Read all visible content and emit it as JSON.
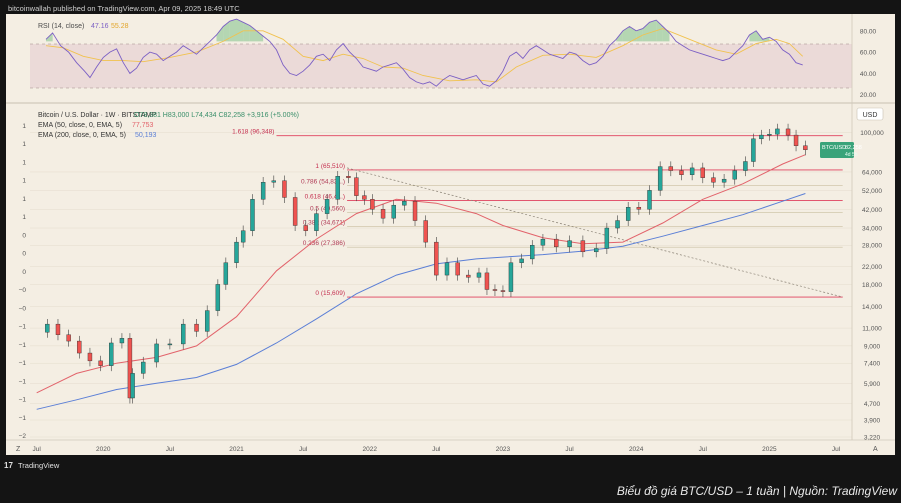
{
  "header": {
    "published_by": "bitcoinwallah published on TradingView.com, Apr 09, 2025 18:49 UTC"
  },
  "rsi": {
    "label": "RSI (14, close)",
    "value1": "47.16",
    "value2": "55.28",
    "ticks": [
      "80.00",
      "60.00",
      "40.00",
      "20.00"
    ],
    "overbought": 70,
    "oversold": 30,
    "range": [
      15,
      92
    ],
    "values": [
      [
        2019.57,
        72
      ],
      [
        2019.62,
        78
      ],
      [
        2019.68,
        66
      ],
      [
        2019.74,
        60
      ],
      [
        2019.8,
        50
      ],
      [
        2019.86,
        42
      ],
      [
        2019.9,
        36
      ],
      [
        2019.95,
        46
      ],
      [
        2020.0,
        55
      ],
      [
        2020.05,
        60
      ],
      [
        2020.1,
        63
      ],
      [
        2020.15,
        50
      ],
      [
        2020.2,
        40
      ],
      [
        2020.25,
        45
      ],
      [
        2020.3,
        55
      ],
      [
        2020.35,
        60
      ],
      [
        2020.4,
        58
      ],
      [
        2020.45,
        52
      ],
      [
        2020.5,
        56
      ],
      [
        2020.55,
        60
      ],
      [
        2020.6,
        66
      ],
      [
        2020.65,
        62
      ],
      [
        2020.7,
        58
      ],
      [
        2020.75,
        64
      ],
      [
        2020.8,
        70
      ],
      [
        2020.85,
        76
      ],
      [
        2020.9,
        84
      ],
      [
        2020.95,
        89
      ],
      [
        2021.0,
        91
      ],
      [
        2021.05,
        88
      ],
      [
        2021.1,
        85
      ],
      [
        2021.15,
        80
      ],
      [
        2021.2,
        75
      ],
      [
        2021.25,
        70
      ],
      [
        2021.3,
        62
      ],
      [
        2021.35,
        48
      ],
      [
        2021.4,
        40
      ],
      [
        2021.45,
        38
      ],
      [
        2021.5,
        42
      ],
      [
        2021.55,
        48
      ],
      [
        2021.6,
        56
      ],
      [
        2021.65,
        58
      ],
      [
        2021.7,
        52
      ],
      [
        2021.75,
        62
      ],
      [
        2021.8,
        68
      ],
      [
        2021.85,
        60
      ],
      [
        2021.9,
        54
      ],
      [
        2021.95,
        46
      ],
      [
        2022.0,
        44
      ],
      [
        2022.05,
        42
      ],
      [
        2022.1,
        46
      ],
      [
        2022.15,
        48
      ],
      [
        2022.2,
        50
      ],
      [
        2022.25,
        44
      ],
      [
        2022.3,
        36
      ],
      [
        2022.35,
        32
      ],
      [
        2022.4,
        30
      ],
      [
        2022.45,
        32
      ],
      [
        2022.5,
        28
      ],
      [
        2022.55,
        34
      ],
      [
        2022.6,
        38
      ],
      [
        2022.65,
        36
      ],
      [
        2022.7,
        34
      ],
      [
        2022.75,
        36
      ],
      [
        2022.8,
        38
      ],
      [
        2022.85,
        30
      ],
      [
        2022.9,
        28
      ],
      [
        2022.95,
        33
      ],
      [
        2023.0,
        42
      ],
      [
        2023.05,
        56
      ],
      [
        2023.1,
        60
      ],
      [
        2023.15,
        54
      ],
      [
        2023.2,
        62
      ],
      [
        2023.25,
        66
      ],
      [
        2023.3,
        62
      ],
      [
        2023.35,
        58
      ],
      [
        2023.4,
        56
      ],
      [
        2023.45,
        54
      ],
      [
        2023.5,
        60
      ],
      [
        2023.55,
        58
      ],
      [
        2023.6,
        52
      ],
      [
        2023.65,
        48
      ],
      [
        2023.7,
        50
      ],
      [
        2023.75,
        56
      ],
      [
        2023.8,
        66
      ],
      [
        2023.85,
        72
      ],
      [
        2023.9,
        80
      ],
      [
        2023.95,
        84
      ],
      [
        2024.0,
        80
      ],
      [
        2024.05,
        82
      ],
      [
        2024.1,
        88
      ],
      [
        2024.15,
        90
      ],
      [
        2024.2,
        84
      ],
      [
        2024.25,
        78
      ],
      [
        2024.3,
        70
      ],
      [
        2024.35,
        66
      ],
      [
        2024.4,
        62
      ],
      [
        2024.45,
        60
      ],
      [
        2024.5,
        58
      ],
      [
        2024.55,
        56
      ],
      [
        2024.6,
        54
      ],
      [
        2024.65,
        52
      ],
      [
        2024.7,
        54
      ],
      [
        2024.75,
        60
      ],
      [
        2024.8,
        66
      ],
      [
        2024.85,
        76
      ],
      [
        2024.9,
        80
      ],
      [
        2024.95,
        72
      ],
      [
        2025.0,
        74
      ],
      [
        2025.05,
        70
      ],
      [
        2025.1,
        62
      ],
      [
        2025.15,
        58
      ],
      [
        2025.2,
        50
      ],
      [
        2025.25,
        48
      ]
    ],
    "ema": [
      [
        2019.57,
        66
      ],
      [
        2019.7,
        64
      ],
      [
        2019.85,
        56
      ],
      [
        2020.0,
        52
      ],
      [
        2020.15,
        52
      ],
      [
        2020.3,
        51
      ],
      [
        2020.5,
        55
      ],
      [
        2020.7,
        60
      ],
      [
        2020.9,
        70
      ],
      [
        2021.05,
        80
      ],
      [
        2021.2,
        80
      ],
      [
        2021.35,
        72
      ],
      [
        2021.5,
        56
      ],
      [
        2021.65,
        52
      ],
      [
        2021.8,
        58
      ],
      [
        2021.95,
        54
      ],
      [
        2022.1,
        46
      ],
      [
        2022.25,
        45
      ],
      [
        2022.4,
        38
      ],
      [
        2022.6,
        33
      ],
      [
        2022.8,
        34
      ],
      [
        2022.95,
        32
      ],
      [
        2023.1,
        46
      ],
      [
        2023.3,
        57
      ],
      [
        2023.5,
        58
      ],
      [
        2023.7,
        55
      ],
      [
        2023.9,
        66
      ],
      [
        2024.05,
        76
      ],
      [
        2024.2,
        82
      ],
      [
        2024.4,
        72
      ],
      [
        2024.6,
        62
      ],
      [
        2024.75,
        58
      ],
      [
        2024.9,
        68
      ],
      [
        2025.05,
        72
      ],
      [
        2025.15,
        68
      ],
      [
        2025.25,
        56
      ]
    ]
  },
  "main": {
    "title": "Bitcoin / U.S. Dollar · 1W · BITSTAMP",
    "ohlc": "O78,381  H83,000  L74,434  C82,258  +3,916 (+5.00%)",
    "ema50_label": "EMA (50, close, 0, EMA, 5)",
    "ema50_value": "77,753",
    "ema200_label": "EMA (200, close, 0, EMA, 5)",
    "ema200_value": "50,193",
    "currency": "USD",
    "price_ticks": [
      "100,000",
      "64,000",
      "52,000",
      "42,000",
      "34,000",
      "28,000",
      "22,000",
      "18,000",
      "14,000",
      "11,000",
      "9,000",
      "7,400",
      "5,900",
      "4,700",
      "3,900",
      "3,220"
    ],
    "price_tick_values": [
      100000,
      64000,
      52000,
      42000,
      34000,
      28000,
      22000,
      18000,
      14000,
      11000,
      9000,
      7400,
      5900,
      4700,
      3900,
      3220
    ],
    "left_axis_labels": [
      "1",
      "1",
      "1",
      "1",
      "1",
      "1",
      "0",
      "0",
      "0",
      "−0",
      "−0",
      "−1",
      "−1",
      "−1",
      "−1",
      "−1",
      "−1",
      "−2"
    ],
    "price_label": "BTC/USD",
    "price_value": "82,258",
    "price_countdown": "4d 5h",
    "x_ticks": [
      {
        "label": "Jul",
        "t": 2019.5
      },
      {
        "label": "2020",
        "t": 2020.0
      },
      {
        "label": "Jul",
        "t": 2020.5
      },
      {
        "label": "2021",
        "t": 2021.0
      },
      {
        "label": "Jul",
        "t": 2021.5
      },
      {
        "label": "2022",
        "t": 2022.0
      },
      {
        "label": "Jul",
        "t": 2022.5
      },
      {
        "label": "2023",
        "t": 2023.0
      },
      {
        "label": "Jul",
        "t": 2023.5
      },
      {
        "label": "2024",
        "t": 2024.0
      },
      {
        "label": "Jul",
        "t": 2024.5
      },
      {
        "label": "2025",
        "t": 2025.0
      },
      {
        "label": "Jul",
        "t": 2025.5
      }
    ],
    "x_axis_edge_left": "Z",
    "x_axis_edge_right": "A"
  },
  "fibonacci": [
    {
      "label": "1 (65,510)",
      "price": 65510,
      "ratio": 1,
      "color": "#e0405e"
    },
    {
      "label": "0.786 (54,83...)",
      "price": 54830,
      "ratio": 0.786,
      "color": "#c9bfa0"
    },
    {
      "label": "0.618 (46,4...)",
      "price": 46400,
      "ratio": 0.618,
      "color": "#e0405e"
    },
    {
      "label": "0.5 (40,560)",
      "price": 40560,
      "ratio": 0.5,
      "color": "#c9bfa0"
    },
    {
      "label": "0.382 (34,671)",
      "price": 34671,
      "ratio": 0.382,
      "color": "#c9bfa0"
    },
    {
      "label": "0.236 (27,386)",
      "price": 27386,
      "ratio": 0.236,
      "color": "#c9bfa0"
    },
    {
      "label": "0 (15,609)",
      "price": 15609,
      "ratio": 0,
      "color": "#e0405e"
    },
    {
      "label": "1.618 (96,348)",
      "price": 96348,
      "ratio": 1.618,
      "color": "#e0405e"
    }
  ],
  "chart_data": {
    "type": "line",
    "title": "Bitcoin / U.S. Dollar · 1W · BITSTAMP",
    "xlabel": "",
    "ylabel": "USD",
    "y_scale": "log",
    "ylim": [
      3220,
      115000
    ],
    "xlim": [
      2019.45,
      2025.62
    ],
    "series": [
      {
        "name": "Bitcoin / U.S. Dollar",
        "color": "#26a69a",
        "x": [
          2019.5,
          2019.58,
          2019.66,
          2019.74,
          2019.82,
          2019.9,
          2019.98,
          2020.06,
          2020.14,
          2020.2,
          2020.22,
          2020.3,
          2020.4,
          2020.5,
          2020.6,
          2020.7,
          2020.78,
          2020.86,
          2020.92,
          2021.0,
          2021.05,
          2021.12,
          2021.2,
          2021.28,
          2021.36,
          2021.44,
          2021.52,
          2021.6,
          2021.68,
          2021.76,
          2021.84,
          2021.9,
          2021.96,
          2022.02,
          2022.1,
          2022.18,
          2022.26,
          2022.34,
          2022.42,
          2022.5,
          2022.58,
          2022.66,
          2022.74,
          2022.82,
          2022.88,
          2022.94,
          2023.0,
          2023.06,
          2023.14,
          2023.22,
          2023.3,
          2023.4,
          2023.5,
          2023.6,
          2023.7,
          2023.78,
          2023.86,
          2023.94,
          2024.02,
          2024.1,
          2024.18,
          2024.26,
          2024.34,
          2024.42,
          2024.5,
          2024.58,
          2024.66,
          2024.74,
          2024.82,
          2024.88,
          2024.94,
          2025.0,
          2025.06,
          2025.14,
          2025.2,
          2025.27
        ],
        "values": [
          10500,
          11500,
          10200,
          9500,
          8300,
          7600,
          7200,
          9300,
          9800,
          5000,
          6600,
          7500,
          9200,
          9200,
          11500,
          10600,
          13400,
          18000,
          23000,
          29000,
          33000,
          47000,
          57000,
          58000,
          48000,
          35000,
          33000,
          40000,
          47000,
          61000,
          60000,
          49000,
          47000,
          42000,
          38000,
          44000,
          46000,
          37000,
          29000,
          20000,
          23000,
          20000,
          19500,
          20500,
          17000,
          16800,
          16600,
          23000,
          24000,
          28000,
          30000,
          27500,
          29500,
          26000,
          27000,
          34000,
          37000,
          43000,
          42000,
          52000,
          68000,
          65000,
          62000,
          67000,
          60000,
          57000,
          59000,
          65000,
          72000,
          93000,
          97000,
          98000,
          104000,
          97000,
          86000,
          82258
        ]
      },
      {
        "name": "EMA (50, close, 0, EMA, 5)",
        "color": "#e2636b",
        "x": [
          2019.5,
          2019.8,
          2020.1,
          2020.4,
          2020.7,
          2021.0,
          2021.3,
          2021.6,
          2021.9,
          2022.2,
          2022.5,
          2022.8,
          2023.0,
          2023.3,
          2023.6,
          2023.9,
          2024.2,
          2024.5,
          2024.8,
          2025.1,
          2025.27
        ],
        "values": [
          5300,
          6600,
          7400,
          7900,
          9000,
          12500,
          21000,
          30000,
          40000,
          47000,
          45000,
          40000,
          35000,
          30500,
          28500,
          29000,
          36000,
          47000,
          56000,
          70000,
          77753
        ]
      },
      {
        "name": "EMA (200, close, 0, EMA, 5)",
        "color": "#5b7fd6",
        "x": [
          2019.5,
          2019.8,
          2020.1,
          2020.4,
          2020.7,
          2021.0,
          2021.3,
          2021.6,
          2021.9,
          2022.2,
          2022.5,
          2022.8,
          2023.0,
          2023.3,
          2023.6,
          2023.9,
          2024.2,
          2024.5,
          2024.8,
          2025.1,
          2025.27
        ],
        "values": [
          4400,
          4900,
          5500,
          5900,
          6300,
          7300,
          9300,
          12200,
          16200,
          20000,
          22700,
          24000,
          24500,
          25200,
          26200,
          27700,
          31000,
          35000,
          39500,
          46000,
          50193
        ]
      }
    ]
  },
  "footer": {
    "brand": "TradingView",
    "caption": "Biểu đồ giá BTC/USD – 1 tuần | Nguồn: TradingView"
  },
  "colors": {
    "background": "#141414",
    "panel": "#f4eee3",
    "up": "#26a69a",
    "down": "#ef5350",
    "rsi_line": "#7b5fc4",
    "rsi_ema": "#f1c24e",
    "rsi_band": "#e7cfd2",
    "fib_red": "#e0405e",
    "trend_dashed": "#8a8275",
    "price_tag": "#3aa37a"
  }
}
